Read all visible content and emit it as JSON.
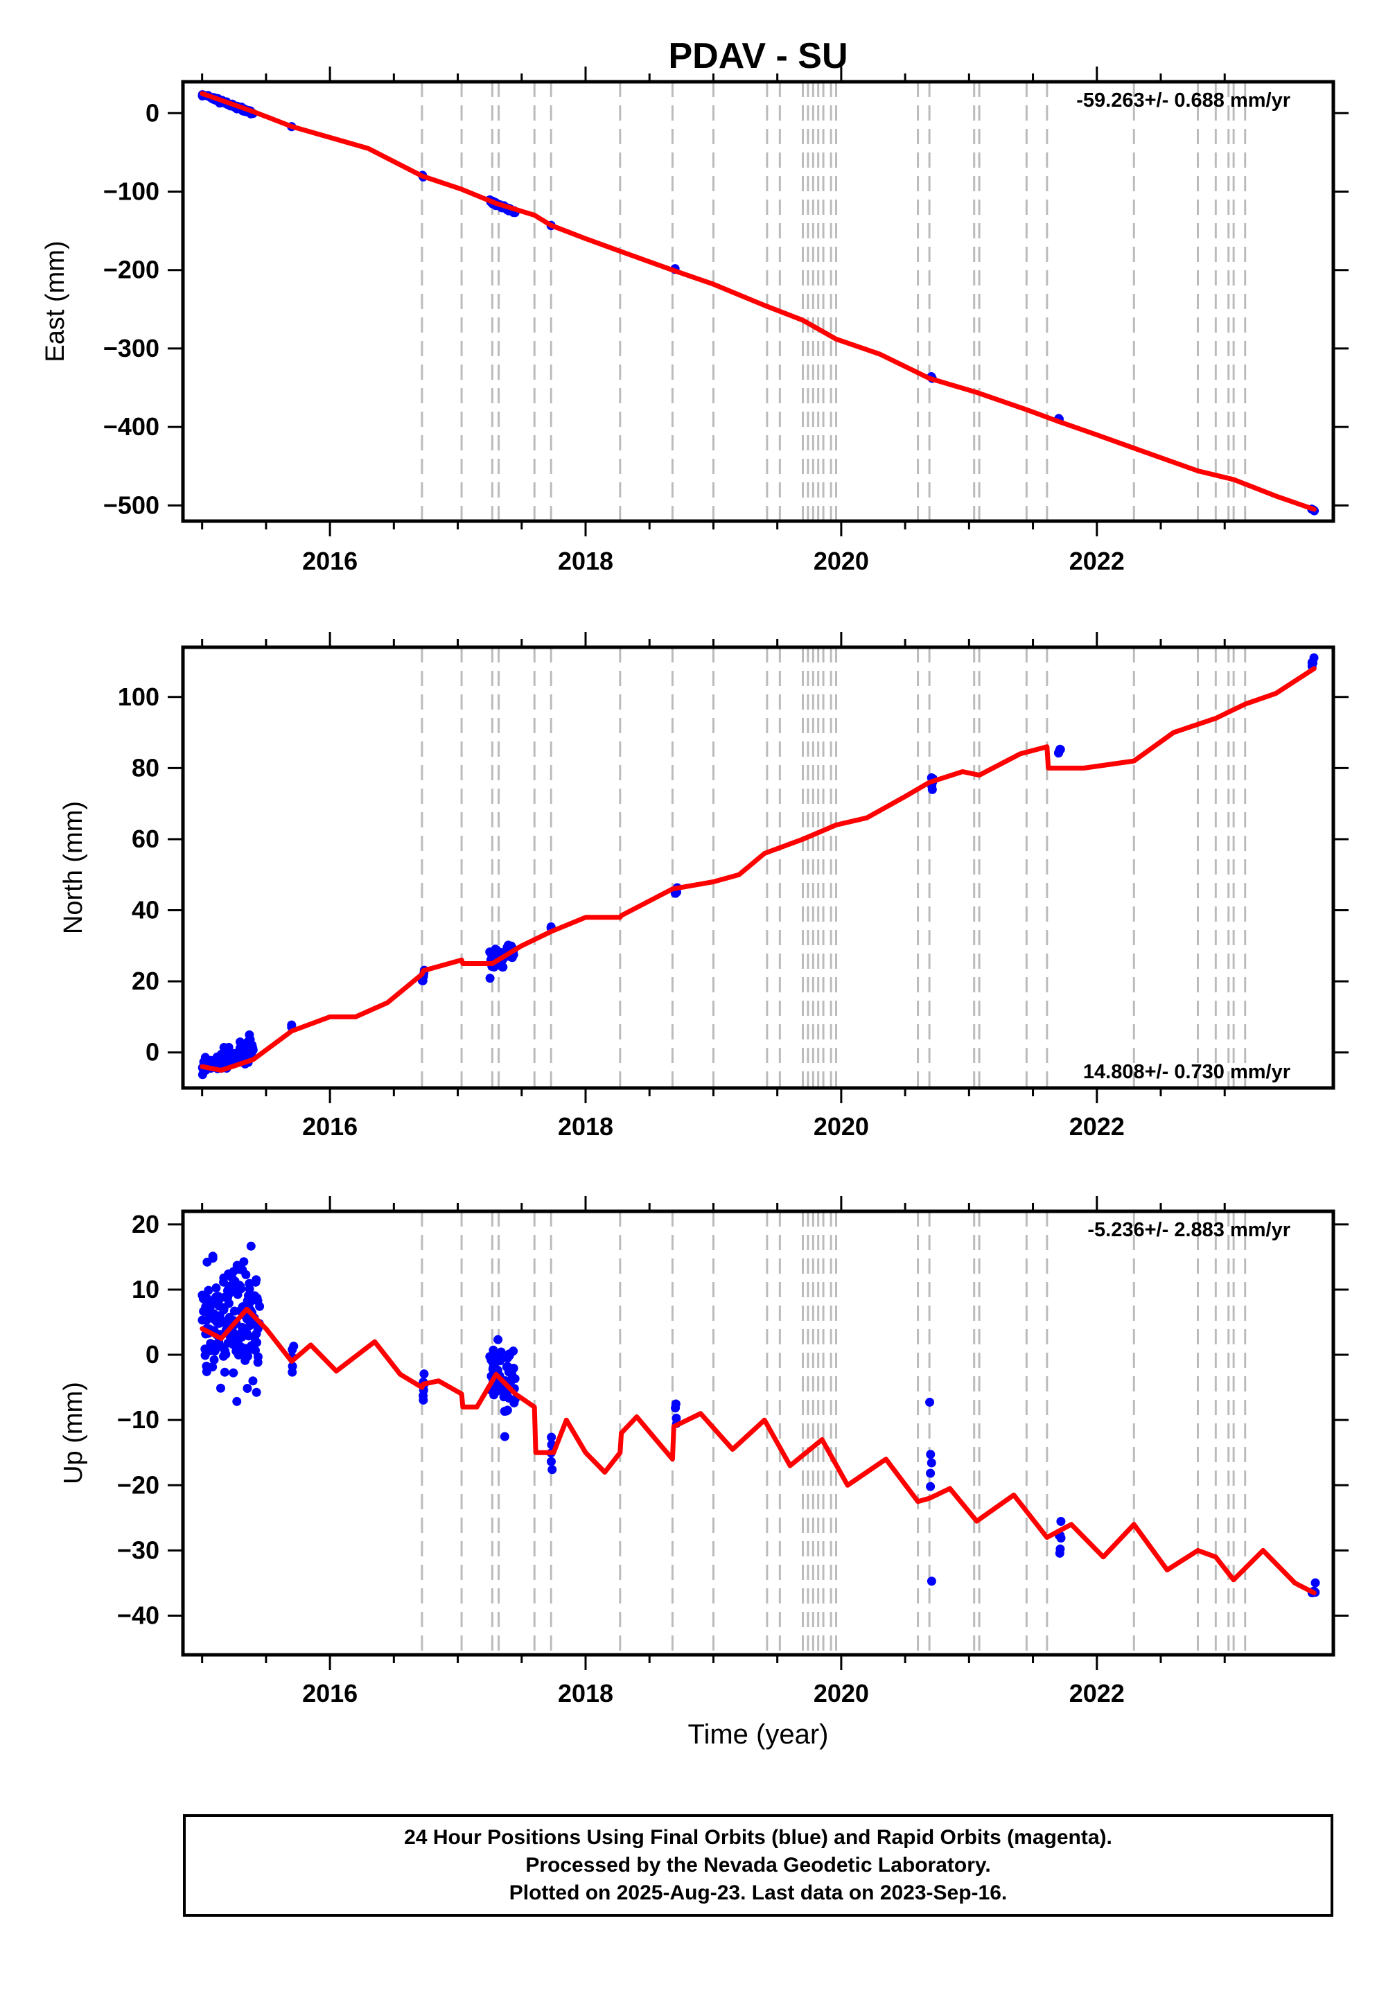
{
  "title": "PDAV - SU",
  "x_axis": {
    "label": "Time (year)",
    "range": [
      2014.85,
      2023.85
    ],
    "ticks": [
      2016,
      2018,
      2020,
      2022
    ],
    "tick_labels": [
      "2016",
      "2018",
      "2020",
      "2022"
    ]
  },
  "colors": {
    "data_points": "#0000ff",
    "model_line": "#ff0000",
    "event_lines": "#bbbbbb"
  },
  "event_lines_years": [
    2016.72,
    2017.03,
    2017.27,
    2017.32,
    2017.6,
    2017.73,
    2018.27,
    2018.68,
    2019.0,
    2019.42,
    2019.52,
    2019.7,
    2019.74,
    2019.78,
    2019.82,
    2019.86,
    2019.92,
    2019.96,
    2020.6,
    2020.69,
    2021.04,
    2021.08,
    2021.45,
    2021.61,
    2022.29,
    2022.79,
    2022.93,
    2023.03,
    2023.07,
    2023.16
  ],
  "footer": {
    "line1": "24 Hour Positions Using Final Orbits (blue) and Rapid Orbits (magenta).",
    "line2": "Processed by the Nevada Geodetic Laboratory.",
    "line3": "Plotted on 2025-Aug-23. Last data on 2023-Sep-16."
  },
  "chart_data": [
    {
      "type": "scatter",
      "ylabel": "East (mm)",
      "ylim": [
        -520,
        40
      ],
      "yticks": [
        0,
        -100,
        -200,
        -300,
        -400,
        -500
      ],
      "ytick_labels": [
        "0",
        "−100",
        "−200",
        "−300",
        "−400",
        "−500"
      ],
      "rate": "-59.263+/- 0.688 mm/yr",
      "rate_position": "top-right",
      "model": [
        [
          2015.0,
          25
        ],
        [
          2015.4,
          2
        ],
        [
          2015.7,
          -17
        ],
        [
          2016.0,
          -31
        ],
        [
          2016.3,
          -45
        ],
        [
          2016.72,
          -80
        ],
        [
          2017.03,
          -97
        ],
        [
          2017.3,
          -115
        ],
        [
          2017.6,
          -130
        ],
        [
          2017.73,
          -143
        ],
        [
          2018.0,
          -160
        ],
        [
          2018.27,
          -176
        ],
        [
          2018.68,
          -200
        ],
        [
          2019.0,
          -218
        ],
        [
          2019.4,
          -245
        ],
        [
          2019.7,
          -264
        ],
        [
          2019.96,
          -288
        ],
        [
          2020.3,
          -307
        ],
        [
          2020.69,
          -338
        ],
        [
          2021.06,
          -356
        ],
        [
          2021.45,
          -378
        ],
        [
          2021.7,
          -393
        ],
        [
          2022.0,
          -410
        ],
        [
          2022.29,
          -427
        ],
        [
          2022.79,
          -456
        ],
        [
          2023.07,
          -467
        ],
        [
          2023.4,
          -488
        ],
        [
          2023.7,
          -505
        ]
      ],
      "clusters": [
        {
          "x": [
            2015.0,
            2015.4
          ],
          "y": [
            24,
            0
          ],
          "n": 70,
          "spread": 2
        },
        {
          "x": [
            2015.7,
            2015.7
          ],
          "y": [
            -18,
            -18
          ],
          "n": 2,
          "spread": 1
        },
        {
          "x": [
            2016.72,
            2016.73
          ],
          "y": [
            -80,
            -80
          ],
          "n": 2,
          "spread": 1
        },
        {
          "x": [
            2017.25,
            2017.45
          ],
          "y": [
            -113,
            -126
          ],
          "n": 40,
          "spread": 2
        },
        {
          "x": [
            2017.73,
            2017.73
          ],
          "y": [
            -143,
            -143
          ],
          "n": 2,
          "spread": 1
        },
        {
          "x": [
            2018.7,
            2018.7
          ],
          "y": [
            -199,
            -199
          ],
          "n": 2,
          "spread": 1
        },
        {
          "x": [
            2020.7,
            2020.72
          ],
          "y": [
            -336,
            -339
          ],
          "n": 3,
          "spread": 1
        },
        {
          "x": [
            2021.7,
            2021.72
          ],
          "y": [
            -390,
            -391
          ],
          "n": 3,
          "spread": 1
        },
        {
          "x": [
            2023.68,
            2023.71
          ],
          "y": [
            -505,
            -507
          ],
          "n": 3,
          "spread": 1
        }
      ]
    },
    {
      "type": "scatter",
      "ylabel": "North (mm)",
      "ylim": [
        -10,
        114
      ],
      "yticks": [
        0,
        20,
        40,
        60,
        80,
        100
      ],
      "ytick_labels": [
        "0",
        "20",
        "40",
        "60",
        "80",
        "100"
      ],
      "rate": "14.808+/- 0.730 mm/yr",
      "rate_position": "bottom-right",
      "model": [
        [
          2015.0,
          -4
        ],
        [
          2015.15,
          -5
        ],
        [
          2015.4,
          -2
        ],
        [
          2015.7,
          6
        ],
        [
          2016.0,
          10
        ],
        [
          2016.2,
          10
        ],
        [
          2016.45,
          14
        ],
        [
          2016.72,
          22
        ],
        [
          2016.73,
          23
        ],
        [
          2017.03,
          26
        ],
        [
          2017.04,
          25
        ],
        [
          2017.27,
          25
        ],
        [
          2017.5,
          30
        ],
        [
          2017.73,
          34
        ],
        [
          2018.0,
          38
        ],
        [
          2018.27,
          38
        ],
        [
          2018.28,
          38.5
        ],
        [
          2018.68,
          46
        ],
        [
          2019.0,
          48
        ],
        [
          2019.2,
          50
        ],
        [
          2019.4,
          56
        ],
        [
          2019.7,
          60
        ],
        [
          2019.96,
          64
        ],
        [
          2020.2,
          66
        ],
        [
          2020.5,
          72
        ],
        [
          2020.69,
          76
        ],
        [
          2020.95,
          79
        ],
        [
          2021.08,
          78
        ],
        [
          2021.4,
          84
        ],
        [
          2021.61,
          86
        ],
        [
          2021.62,
          80
        ],
        [
          2021.9,
          80
        ],
        [
          2022.29,
          82
        ],
        [
          2022.6,
          90
        ],
        [
          2022.93,
          94
        ],
        [
          2023.16,
          98
        ],
        [
          2023.4,
          101
        ],
        [
          2023.7,
          108
        ]
      ],
      "clusters": [
        {
          "x": [
            2015.0,
            2015.4
          ],
          "y": [
            -4,
            1
          ],
          "n": 80,
          "spread": 2.5
        },
        {
          "x": [
            2015.7,
            2015.7
          ],
          "y": [
            7.5,
            7.5
          ],
          "n": 2,
          "spread": 0.5
        },
        {
          "x": [
            2016.72,
            2016.74
          ],
          "y": [
            21,
            23
          ],
          "n": 5,
          "spread": 1.5
        },
        {
          "x": [
            2017.25,
            2017.45
          ],
          "y": [
            25,
            29
          ],
          "n": 60,
          "spread": 2
        },
        {
          "x": [
            2017.73,
            2017.73
          ],
          "y": [
            35,
            35
          ],
          "n": 2,
          "spread": 0.5
        },
        {
          "x": [
            2018.7,
            2018.72
          ],
          "y": [
            45,
            46
          ],
          "n": 4,
          "spread": 1
        },
        {
          "x": [
            2020.7,
            2020.72
          ],
          "y": [
            75,
            76
          ],
          "n": 5,
          "spread": 3
        },
        {
          "x": [
            2021.7,
            2021.72
          ],
          "y": [
            84,
            85
          ],
          "n": 5,
          "spread": 1
        },
        {
          "x": [
            2023.68,
            2023.71
          ],
          "y": [
            109,
            111
          ],
          "n": 4,
          "spread": 1
        }
      ]
    },
    {
      "type": "scatter",
      "ylabel": "Up (mm)",
      "ylim": [
        -46,
        22
      ],
      "yticks": [
        20,
        10,
        0,
        -10,
        -20,
        -30,
        -40
      ],
      "ytick_labels": [
        "20",
        "10",
        "0",
        "−10",
        "−20",
        "−30",
        "−40"
      ],
      "rate": "-5.236+/- 2.883 mm/yr",
      "rate_position": "top-right",
      "model": [
        [
          2015.0,
          4
        ],
        [
          2015.15,
          2.5
        ],
        [
          2015.35,
          7
        ],
        [
          2015.5,
          4
        ],
        [
          2015.7,
          -1
        ],
        [
          2015.85,
          1.5
        ],
        [
          2016.05,
          -2.5
        ],
        [
          2016.35,
          2
        ],
        [
          2016.55,
          -3
        ],
        [
          2016.72,
          -5
        ],
        [
          2016.73,
          -4.5
        ],
        [
          2016.85,
          -4
        ],
        [
          2017.03,
          -6
        ],
        [
          2017.04,
          -8
        ],
        [
          2017.15,
          -8
        ],
        [
          2017.3,
          -3
        ],
        [
          2017.45,
          -6
        ],
        [
          2017.6,
          -8
        ],
        [
          2017.61,
          -15
        ],
        [
          2017.75,
          -15
        ],
        [
          2017.85,
          -10
        ],
        [
          2018.0,
          -15
        ],
        [
          2018.15,
          -18
        ],
        [
          2018.27,
          -15
        ],
        [
          2018.28,
          -12
        ],
        [
          2018.4,
          -9.5
        ],
        [
          2018.55,
          -13
        ],
        [
          2018.68,
          -16
        ],
        [
          2018.69,
          -11
        ],
        [
          2018.9,
          -9
        ],
        [
          2019.15,
          -14.5
        ],
        [
          2019.4,
          -10
        ],
        [
          2019.6,
          -17
        ],
        [
          2019.85,
          -13
        ],
        [
          2020.05,
          -20
        ],
        [
          2020.35,
          -16
        ],
        [
          2020.6,
          -22.5
        ],
        [
          2020.69,
          -22
        ],
        [
          2020.85,
          -20.5
        ],
        [
          2021.06,
          -25.5
        ],
        [
          2021.35,
          -21.5
        ],
        [
          2021.61,
          -28
        ],
        [
          2021.8,
          -26
        ],
        [
          2022.05,
          -31
        ],
        [
          2022.29,
          -26
        ],
        [
          2022.55,
          -33
        ],
        [
          2022.79,
          -30
        ],
        [
          2022.93,
          -31
        ],
        [
          2023.07,
          -34.5
        ],
        [
          2023.3,
          -30
        ],
        [
          2023.55,
          -35
        ],
        [
          2023.7,
          -36.5
        ]
      ],
      "clusters": [
        {
          "x": [
            2015.0,
            2015.45
          ],
          "y": [
            5,
            5
          ],
          "n": 180,
          "spread": 7
        },
        {
          "x": [
            2015.7,
            2015.72
          ],
          "y": [
            0,
            0
          ],
          "n": 5,
          "spread": 4
        },
        {
          "x": [
            2016.72,
            2016.74
          ],
          "y": [
            -4,
            -4
          ],
          "n": 6,
          "spread": 4
        },
        {
          "x": [
            2017.25,
            2017.45
          ],
          "y": [
            -4,
            -4
          ],
          "n": 60,
          "spread": 5
        },
        {
          "x": [
            2017.73,
            2017.74
          ],
          "y": [
            -14,
            -14
          ],
          "n": 5,
          "spread": 5
        },
        {
          "x": [
            2018.7,
            2018.72
          ],
          "y": [
            -10,
            -10
          ],
          "n": 4,
          "spread": 2
        },
        {
          "x": [
            2020.69,
            2020.71
          ],
          "y": [
            -22,
            -22
          ],
          "n": 6,
          "spread": 8
        },
        {
          "x": [
            2021.7,
            2021.72
          ],
          "y": [
            -28,
            -28
          ],
          "n": 6,
          "spread": 4
        },
        {
          "x": [
            2023.68,
            2023.71
          ],
          "y": [
            -36,
            -36
          ],
          "n": 5,
          "spread": 3
        }
      ]
    }
  ]
}
